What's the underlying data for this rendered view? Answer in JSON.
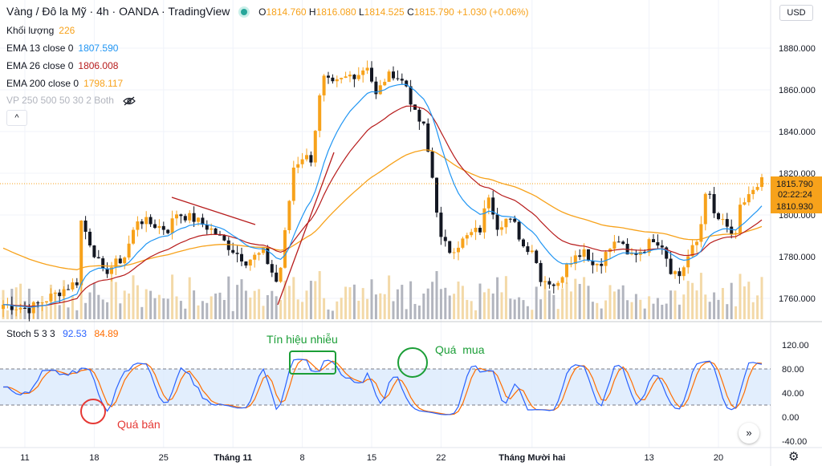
{
  "header": {
    "symbol": "Vàng / Đô la Mỹ",
    "interval": "4h",
    "exchange": "OANDA",
    "platform": "TradingView",
    "open_label": "O",
    "open": "1814.760",
    "high_label": "H",
    "high": "1816.080",
    "low_label": "L",
    "low": "1814.525",
    "close_label": "C",
    "close": "1815.790",
    "change": "+1.030 (+0.06%)"
  },
  "legend": {
    "volume_label": "Khối lượng",
    "volume_value": "226",
    "ema13_label": "EMA 13 close 0",
    "ema13_value": "1807.590",
    "ema26_label": "EMA 26 close 0",
    "ema26_value": "1806.008",
    "ema200_label": "EMA 200 close 0",
    "ema200_value": "1798.117",
    "vp_label": "VP 250 500 50 30 2 Both"
  },
  "currency_button": "USD",
  "collapse_icon": "chevron-up-icon",
  "price_tags": {
    "close": "1815.790",
    "countdown": "02:22:24",
    "ema": "1810.930"
  },
  "stoch": {
    "label": "Stoch 5 3 3",
    "k": "92.53",
    "d": "84.89"
  },
  "annotations": {
    "noise": "Tín hiệu nhiễu",
    "overbought": "Quá  mua",
    "oversold": "Quá bán"
  },
  "colors": {
    "up": "#f7a21b",
    "down": "#131722",
    "ema13": "#2196f3",
    "ema26": "#b71c1c",
    "ema200": "#f7a21b",
    "stoch_k": "#2962ff",
    "stoch_d": "#ff6d00",
    "vol_up": "#f3d9a8",
    "vol_down": "#b2b5be"
  },
  "chart_data": [
    {
      "type": "candlestick",
      "title": "Vàng / Đô la Mỹ · 4h · OANDA",
      "ylim": [
        1750,
        1890
      ],
      "price_ticks": [
        "1880.000",
        "1860.000",
        "1840.000",
        "1820.000",
        "1800.000",
        "1780.000",
        "1760.000"
      ],
      "x_ticks": [
        "11",
        "18",
        "25",
        "Tháng 11",
        "8",
        "15",
        "22",
        "Tháng Mười hai",
        "13",
        "20"
      ],
      "close_path": [
        [
          0,
          1757
        ],
        [
          6,
          1755
        ],
        [
          12,
          1762
        ],
        [
          17,
          1768
        ],
        [
          18,
          1797
        ],
        [
          23,
          1772
        ],
        [
          28,
          1780
        ],
        [
          31,
          1798
        ],
        [
          38,
          1793
        ],
        [
          40,
          1801
        ],
        [
          44,
          1798
        ],
        [
          48,
          1793
        ],
        [
          52,
          1785
        ],
        [
          56,
          1778
        ],
        [
          60,
          1782
        ],
        [
          63,
          1768
        ],
        [
          64,
          1775
        ],
        [
          67,
          1823
        ],
        [
          69,
          1828
        ],
        [
          71,
          1827
        ],
        [
          73,
          1856
        ],
        [
          74,
          1865
        ],
        [
          76,
          1862
        ],
        [
          80,
          1867
        ],
        [
          82,
          1868
        ],
        [
          84,
          1872
        ],
        [
          86,
          1857
        ],
        [
          88,
          1865
        ],
        [
          90,
          1868
        ],
        [
          93,
          1862
        ],
        [
          95,
          1848
        ],
        [
          97,
          1842
        ],
        [
          99,
          1818
        ],
        [
          101,
          1788
        ],
        [
          103,
          1783
        ],
        [
          105,
          1786
        ],
        [
          108,
          1791
        ],
        [
          110,
          1793
        ],
        [
          112,
          1810
        ],
        [
          114,
          1795
        ],
        [
          116,
          1798
        ],
        [
          118,
          1795
        ],
        [
          120,
          1785
        ],
        [
          122,
          1784
        ],
        [
          124,
          1770
        ],
        [
          126,
          1768
        ],
        [
          128,
          1766
        ],
        [
          130,
          1778
        ],
        [
          132,
          1780
        ],
        [
          134,
          1784
        ],
        [
          136,
          1776
        ],
        [
          138,
          1778
        ],
        [
          140,
          1784
        ],
        [
          142,
          1788
        ],
        [
          144,
          1780
        ],
        [
          146,
          1782
        ],
        [
          148,
          1784
        ],
        [
          150,
          1789
        ],
        [
          152,
          1786
        ],
        [
          154,
          1774
        ],
        [
          156,
          1771
        ],
        [
          158,
          1780
        ],
        [
          160,
          1787
        ],
        [
          161,
          1796
        ],
        [
          162,
          1812
        ],
        [
          163,
          1808
        ],
        [
          164,
          1800
        ],
        [
          166,
          1796
        ],
        [
          168,
          1791
        ],
        [
          169,
          1789
        ],
        [
          170,
          1803
        ],
        [
          172,
          1810
        ],
        [
          174,
          1812
        ],
        [
          175,
          1816
        ]
      ]
    },
    {
      "type": "line",
      "title": "Stoch 5 3 3",
      "ylim": [
        -40,
        120
      ],
      "y_ticks": [
        "120.00",
        "80.00",
        "40.00",
        "0.00",
        "-40.00"
      ],
      "overbought": 80,
      "oversold": 20,
      "series": [
        {
          "name": "92.53"
        },
        {
          "name": "84.89"
        }
      ]
    }
  ]
}
